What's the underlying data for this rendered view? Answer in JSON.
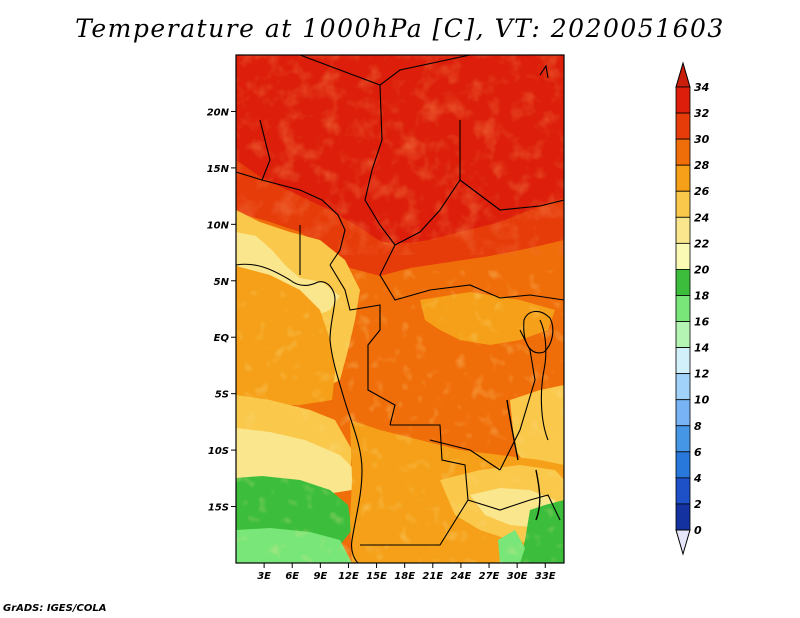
{
  "title": "Temperature at 1000hPa [C], VT: 2020051603",
  "footer": "GrADS: IGES/COLA",
  "map": {
    "lat_range": [
      -20,
      25
    ],
    "lon_range": [
      0,
      35
    ],
    "lat_ticks": [
      {
        "value": 20,
        "label": "20N"
      },
      {
        "value": 15,
        "label": "15N"
      },
      {
        "value": 10,
        "label": "10N"
      },
      {
        "value": 5,
        "label": "5N"
      },
      {
        "value": 0,
        "label": "EQ"
      },
      {
        "value": -5,
        "label": "5S"
      },
      {
        "value": -10,
        "label": "10S"
      },
      {
        "value": -15,
        "label": "15S"
      }
    ],
    "lon_ticks": [
      {
        "value": 3,
        "label": "3E"
      },
      {
        "value": 6,
        "label": "6E"
      },
      {
        "value": 9,
        "label": "9E"
      },
      {
        "value": 12,
        "label": "12E"
      },
      {
        "value": 15,
        "label": "15E"
      },
      {
        "value": 18,
        "label": "18E"
      },
      {
        "value": 21,
        "label": "21E"
      },
      {
        "value": 24,
        "label": "24E"
      },
      {
        "value": 27,
        "label": "27E"
      },
      {
        "value": 30,
        "label": "30E"
      },
      {
        "value": 33,
        "label": "33E"
      }
    ]
  },
  "colorbar": {
    "levels": [
      {
        "label": "34",
        "color": "#dc1e0a"
      },
      {
        "label": "32",
        "color": "#e63c0a"
      },
      {
        "label": "30",
        "color": "#f06e0a"
      },
      {
        "label": "28",
        "color": "#f5a018"
      },
      {
        "label": "26",
        "color": "#fac84b"
      },
      {
        "label": "24",
        "color": "#fae68c"
      },
      {
        "label": "22",
        "color": "#fafab4"
      },
      {
        "label": "20",
        "color": "#3cbe3c"
      },
      {
        "label": "18",
        "color": "#78e678"
      },
      {
        "label": "16",
        "color": "#b4f5b4"
      },
      {
        "label": "14",
        "color": "#d2f0fa"
      },
      {
        "label": "12",
        "color": "#a0d2fa"
      },
      {
        "label": "10",
        "color": "#78b4f5"
      },
      {
        "label": "8",
        "color": "#4696e6"
      },
      {
        "label": "6",
        "color": "#2878dc"
      },
      {
        "label": "4",
        "color": "#1e50c8"
      },
      {
        "label": "2",
        "color": "#1432a0"
      },
      {
        "label": "0",
        "color": "#0a1478"
      }
    ],
    "top_color": "#c81e0a",
    "bottom_color": "#e6e6fa"
  }
}
